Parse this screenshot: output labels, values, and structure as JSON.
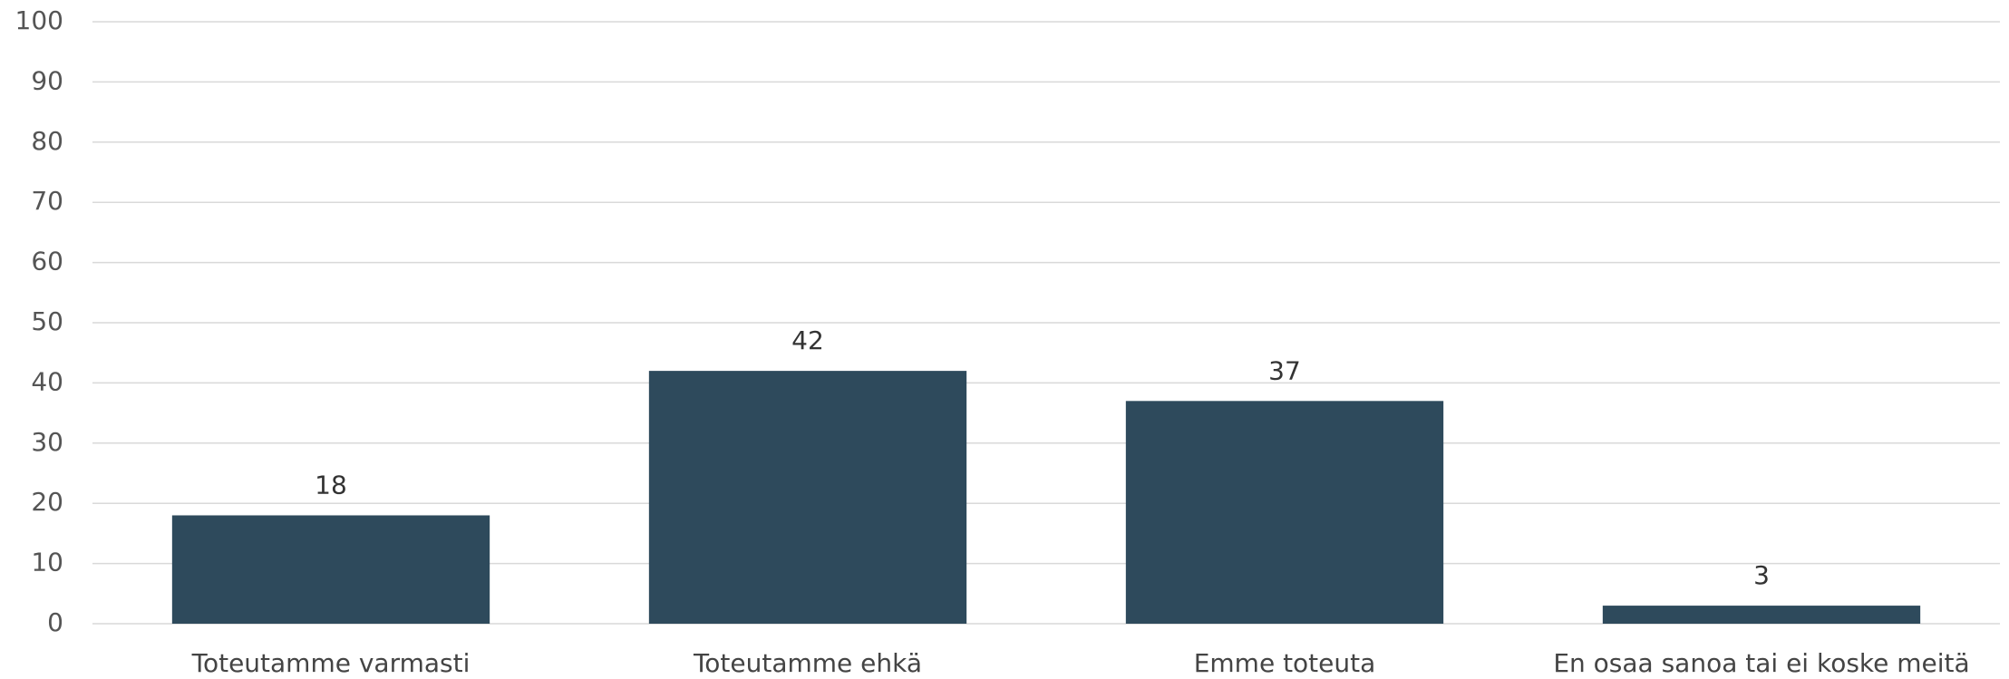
{
  "chart_data": {
    "type": "bar",
    "categories": [
      "Toteutamme varmasti",
      "Toteutamme ehkä",
      "Emme toteuta",
      "En osaa sanoa tai ei koske meitä"
    ],
    "values": [
      18,
      42,
      37,
      3
    ],
    "color": "#2e4a5c",
    "ylim": [
      0,
      100
    ],
    "yticks": [
      0,
      10,
      20,
      30,
      40,
      50,
      60,
      70,
      80,
      90,
      100
    ],
    "grid": true
  }
}
